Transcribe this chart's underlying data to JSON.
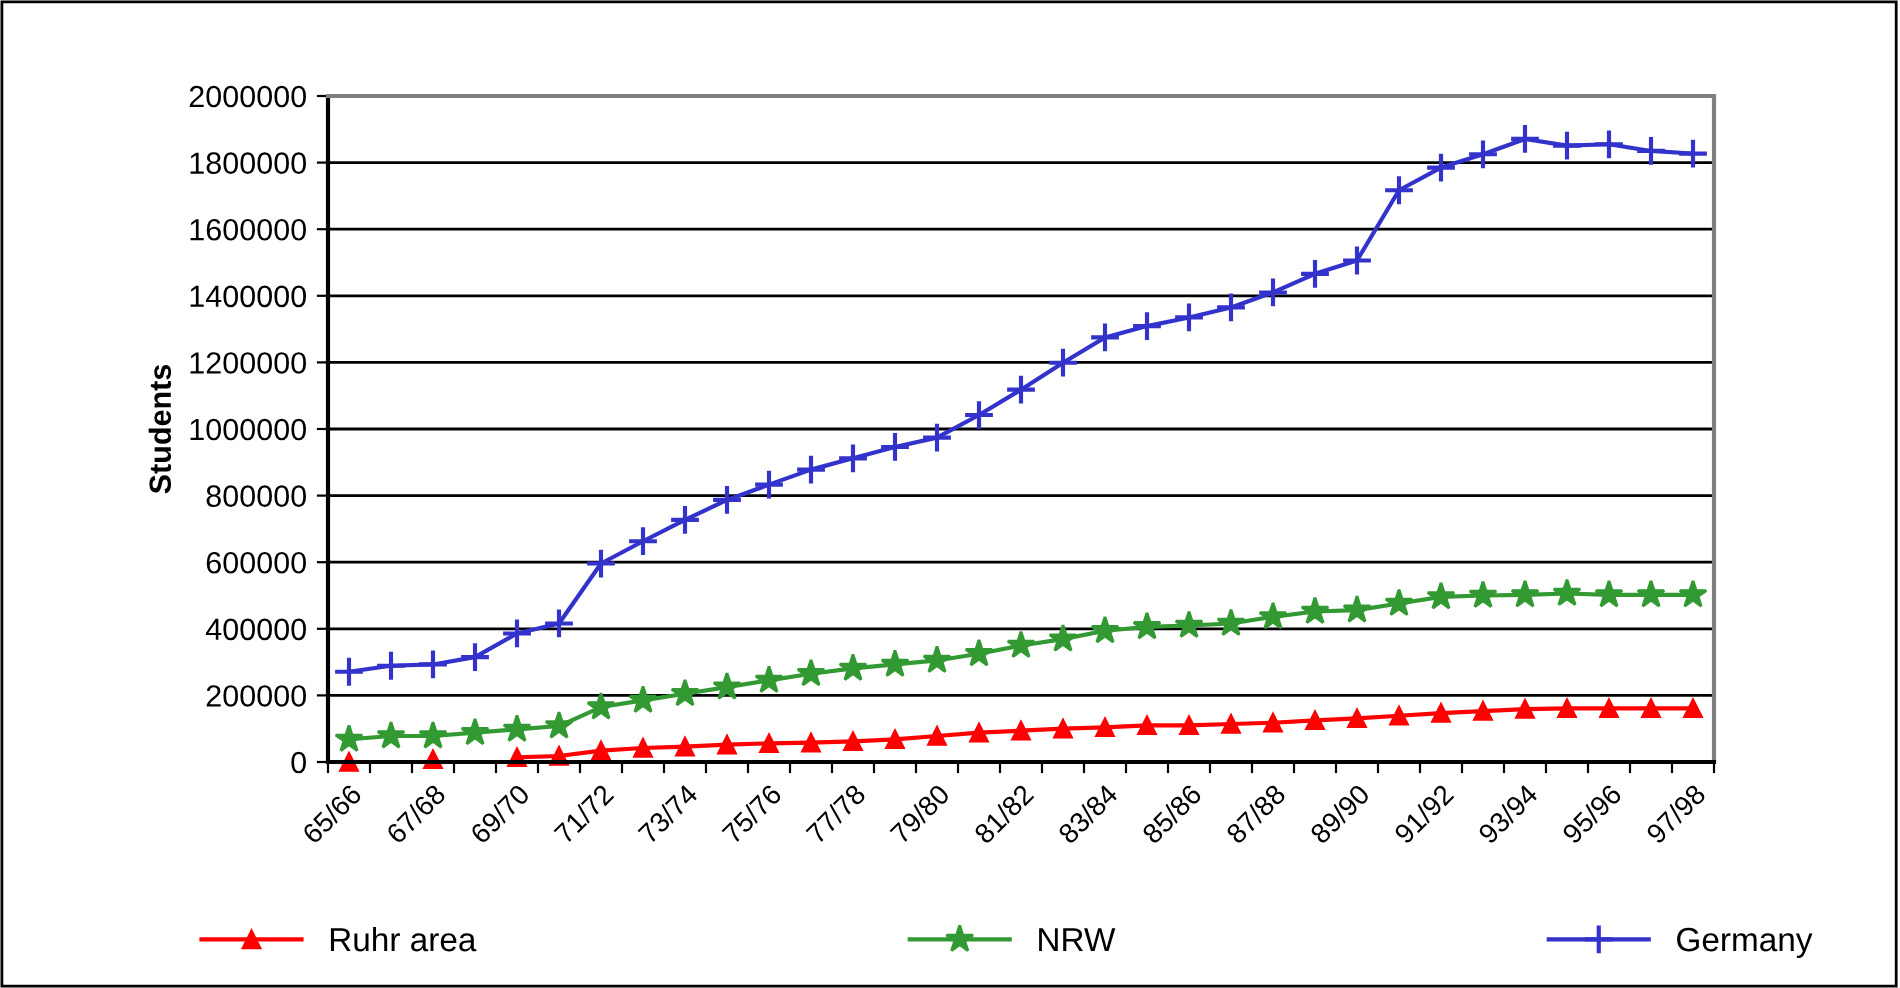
{
  "chart_data": {
    "type": "line",
    "ylabel": "Students",
    "categories": [
      "65/66",
      null,
      "67/68",
      null,
      "69/70",
      null,
      "71/72",
      null,
      "73/74",
      null,
      "75/76",
      null,
      "77/78",
      null,
      "79/80",
      null,
      "81/82",
      null,
      "83/84",
      null,
      "85/86",
      null,
      "87/88",
      null,
      "89/90",
      null,
      "91/92",
      null,
      "93/94",
      null,
      "95/96",
      null,
      "97/98"
    ],
    "series": [
      {
        "name": "Ruhr area",
        "color": "#ff0000",
        "marker": "triangle",
        "values": [
          0,
          null,
          8000,
          null,
          14000,
          18000,
          34000,
          42000,
          46000,
          52000,
          56000,
          58000,
          62000,
          68000,
          78000,
          88000,
          94000,
          100000,
          104000,
          110000,
          110000,
          114000,
          118000,
          125000,
          131000,
          139000,
          147000,
          153000,
          159000,
          161000,
          161000,
          161000,
          161000
        ]
      },
      {
        "name": "NRW",
        "color": "#339933",
        "marker": "star",
        "values": [
          68000,
          78000,
          78000,
          88000,
          98000,
          108000,
          165000,
          185000,
          205000,
          225000,
          245000,
          265000,
          281000,
          293000,
          305000,
          325000,
          350000,
          369000,
          394000,
          406000,
          410000,
          416000,
          436000,
          452000,
          456000,
          476000,
          496000,
          500000,
          502000,
          506000,
          502000,
          502000,
          502000
        ]
      },
      {
        "name": "Germany",
        "color": "#3333cc",
        "marker": "cross",
        "values": [
          271000,
          289000,
          293000,
          315000,
          386000,
          416000,
          596000,
          663000,
          727000,
          787000,
          833000,
          878000,
          912000,
          946000,
          974000,
          1042000,
          1118000,
          1199000,
          1275000,
          1309000,
          1335000,
          1365000,
          1410000,
          1466000,
          1506000,
          1717000,
          1785000,
          1825000,
          1871000,
          1851000,
          1855000,
          1835000,
          1827000
        ]
      }
    ],
    "ylim": [
      0,
      2000000
    ],
    "yticks": [
      0,
      200000,
      400000,
      600000,
      800000,
      1000000,
      1200000,
      1400000,
      1600000,
      1800000,
      2000000
    ],
    "grid": "y",
    "legend": "bottom",
    "line_style": "solid"
  }
}
